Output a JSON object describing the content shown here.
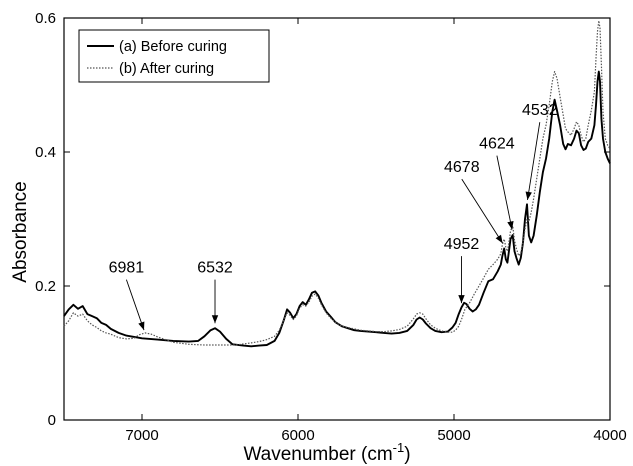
{
  "chart_data": {
    "type": "line",
    "title": "",
    "xlabel": "Wavenumber (cm",
    "xlabel_sup": "-1",
    "xlabel_close": ")",
    "ylabel": "Absorbance",
    "xlim": [
      7500,
      4000
    ],
    "x_reversed": true,
    "ylim": [
      0,
      0.6
    ],
    "grid": false,
    "legend_position": "top-left",
    "x_ticks": [
      7000,
      6000,
      5000,
      4000
    ],
    "y_ticks": [
      0,
      0.2,
      0.4,
      0.6
    ],
    "x_tick_labels": [
      "7000",
      "6000",
      "5000",
      "4000"
    ],
    "y_tick_labels": [
      "0",
      "0.2",
      "0.4",
      "0.6"
    ],
    "series": [
      {
        "name": "(a) Before curing",
        "style": "solid",
        "color": "#000000",
        "points": [
          [
            7500,
            0.155
          ],
          [
            7470,
            0.165
          ],
          [
            7440,
            0.172
          ],
          [
            7410,
            0.166
          ],
          [
            7380,
            0.17
          ],
          [
            7350,
            0.158
          ],
          [
            7320,
            0.155
          ],
          [
            7290,
            0.152
          ],
          [
            7260,
            0.145
          ],
          [
            7230,
            0.142
          ],
          [
            7200,
            0.136
          ],
          [
            7150,
            0.13
          ],
          [
            7100,
            0.126
          ],
          [
            7050,
            0.124
          ],
          [
            7000,
            0.122
          ],
          [
            6900,
            0.12
          ],
          [
            6800,
            0.118
          ],
          [
            6700,
            0.117
          ],
          [
            6640,
            0.118
          ],
          [
            6600,
            0.125
          ],
          [
            6560,
            0.134
          ],
          [
            6532,
            0.137
          ],
          [
            6500,
            0.132
          ],
          [
            6460,
            0.121
          ],
          [
            6420,
            0.113
          ],
          [
            6350,
            0.111
          ],
          [
            6300,
            0.11
          ],
          [
            6250,
            0.111
          ],
          [
            6200,
            0.112
          ],
          [
            6150,
            0.118
          ],
          [
            6120,
            0.13
          ],
          [
            6090,
            0.15
          ],
          [
            6070,
            0.165
          ],
          [
            6050,
            0.16
          ],
          [
            6030,
            0.152
          ],
          [
            6010,
            0.158
          ],
          [
            5990,
            0.17
          ],
          [
            5970,
            0.176
          ],
          [
            5950,
            0.172
          ],
          [
            5930,
            0.18
          ],
          [
            5910,
            0.19
          ],
          [
            5890,
            0.192
          ],
          [
            5870,
            0.186
          ],
          [
            5850,
            0.175
          ],
          [
            5820,
            0.162
          ],
          [
            5790,
            0.154
          ],
          [
            5760,
            0.146
          ],
          [
            5720,
            0.14
          ],
          [
            5680,
            0.137
          ],
          [
            5640,
            0.134
          ],
          [
            5600,
            0.133
          ],
          [
            5550,
            0.132
          ],
          [
            5500,
            0.131
          ],
          [
            5450,
            0.13
          ],
          [
            5400,
            0.129
          ],
          [
            5350,
            0.13
          ],
          [
            5300,
            0.133
          ],
          [
            5260,
            0.142
          ],
          [
            5240,
            0.15
          ],
          [
            5220,
            0.153
          ],
          [
            5200,
            0.15
          ],
          [
            5180,
            0.144
          ],
          [
            5150,
            0.137
          ],
          [
            5120,
            0.133
          ],
          [
            5080,
            0.131
          ],
          [
            5040,
            0.132
          ],
          [
            5010,
            0.138
          ],
          [
            4990,
            0.145
          ],
          [
            4970,
            0.158
          ],
          [
            4952,
            0.168
          ],
          [
            4935,
            0.175
          ],
          [
            4920,
            0.173
          ],
          [
            4900,
            0.166
          ],
          [
            4880,
            0.162
          ],
          [
            4860,
            0.165
          ],
          [
            4840,
            0.172
          ],
          [
            4810,
            0.19
          ],
          [
            4780,
            0.207
          ],
          [
            4750,
            0.21
          ],
          [
            4720,
            0.222
          ],
          [
            4700,
            0.232
          ],
          [
            4690,
            0.245
          ],
          [
            4678,
            0.256
          ],
          [
            4668,
            0.24
          ],
          [
            4658,
            0.235
          ],
          [
            4650,
            0.248
          ],
          [
            4638,
            0.27
          ],
          [
            4624,
            0.276
          ],
          [
            4612,
            0.252
          ],
          [
            4600,
            0.242
          ],
          [
            4585,
            0.232
          ],
          [
            4572,
            0.242
          ],
          [
            4558,
            0.265
          ],
          [
            4545,
            0.3
          ],
          [
            4532,
            0.322
          ],
          [
            4520,
            0.275
          ],
          [
            4505,
            0.265
          ],
          [
            4490,
            0.275
          ],
          [
            4470,
            0.305
          ],
          [
            4450,
            0.34
          ],
          [
            4430,
            0.37
          ],
          [
            4410,
            0.39
          ],
          [
            4390,
            0.42
          ],
          [
            4370,
            0.46
          ],
          [
            4355,
            0.478
          ],
          [
            4340,
            0.462
          ],
          [
            4320,
            0.44
          ],
          [
            4300,
            0.412
          ],
          [
            4285,
            0.404
          ],
          [
            4270,
            0.412
          ],
          [
            4250,
            0.41
          ],
          [
            4230,
            0.42
          ],
          [
            4215,
            0.432
          ],
          [
            4200,
            0.428
          ],
          [
            4185,
            0.41
          ],
          [
            4170,
            0.403
          ],
          [
            4155,
            0.405
          ],
          [
            4140,
            0.415
          ],
          [
            4120,
            0.42
          ],
          [
            4100,
            0.44
          ],
          [
            4090,
            0.47
          ],
          [
            4080,
            0.505
          ],
          [
            4072,
            0.52
          ],
          [
            4064,
            0.505
          ],
          [
            4055,
            0.45
          ],
          [
            4045,
            0.42
          ],
          [
            4030,
            0.4
          ],
          [
            4015,
            0.39
          ],
          [
            4000,
            0.383
          ]
        ]
      },
      {
        "name": "(b) After curing",
        "style": "dotted",
        "color": "#555555",
        "points": [
          [
            7500,
            0.14
          ],
          [
            7470,
            0.148
          ],
          [
            7440,
            0.16
          ],
          [
            7410,
            0.155
          ],
          [
            7380,
            0.158
          ],
          [
            7350,
            0.148
          ],
          [
            7320,
            0.142
          ],
          [
            7290,
            0.138
          ],
          [
            7260,
            0.133
          ],
          [
            7230,
            0.13
          ],
          [
            7200,
            0.128
          ],
          [
            7150,
            0.123
          ],
          [
            7100,
            0.121
          ],
          [
            7050,
            0.122
          ],
          [
            7020,
            0.127
          ],
          [
            6981,
            0.13
          ],
          [
            6940,
            0.128
          ],
          [
            6900,
            0.124
          ],
          [
            6850,
            0.12
          ],
          [
            6800,
            0.116
          ],
          [
            6700,
            0.113
          ],
          [
            6600,
            0.112
          ],
          [
            6532,
            0.112
          ],
          [
            6500,
            0.112
          ],
          [
            6400,
            0.112
          ],
          [
            6300,
            0.115
          ],
          [
            6250,
            0.117
          ],
          [
            6200,
            0.12
          ],
          [
            6150,
            0.125
          ],
          [
            6120,
            0.134
          ],
          [
            6090,
            0.15
          ],
          [
            6070,
            0.16
          ],
          [
            6050,
            0.156
          ],
          [
            6030,
            0.15
          ],
          [
            6010,
            0.155
          ],
          [
            5990,
            0.167
          ],
          [
            5970,
            0.172
          ],
          [
            5950,
            0.17
          ],
          [
            5930,
            0.176
          ],
          [
            5910,
            0.185
          ],
          [
            5890,
            0.188
          ],
          [
            5870,
            0.182
          ],
          [
            5850,
            0.172
          ],
          [
            5820,
            0.16
          ],
          [
            5790,
            0.152
          ],
          [
            5760,
            0.146
          ],
          [
            5720,
            0.14
          ],
          [
            5680,
            0.138
          ],
          [
            5640,
            0.136
          ],
          [
            5600,
            0.134
          ],
          [
            5550,
            0.133
          ],
          [
            5500,
            0.132
          ],
          [
            5450,
            0.132
          ],
          [
            5400,
            0.133
          ],
          [
            5350,
            0.135
          ],
          [
            5300,
            0.14
          ],
          [
            5260,
            0.151
          ],
          [
            5240,
            0.158
          ],
          [
            5220,
            0.16
          ],
          [
            5200,
            0.158
          ],
          [
            5180,
            0.151
          ],
          [
            5150,
            0.142
          ],
          [
            5120,
            0.137
          ],
          [
            5080,
            0.133
          ],
          [
            5040,
            0.131
          ],
          [
            5010,
            0.131
          ],
          [
            4990,
            0.134
          ],
          [
            4970,
            0.14
          ],
          [
            4952,
            0.15
          ],
          [
            4930,
            0.165
          ],
          [
            4900,
            0.175
          ],
          [
            4870,
            0.188
          ],
          [
            4840,
            0.2
          ],
          [
            4810,
            0.212
          ],
          [
            4780,
            0.225
          ],
          [
            4750,
            0.232
          ],
          [
            4720,
            0.24
          ],
          [
            4700,
            0.248
          ],
          [
            4690,
            0.262
          ],
          [
            4678,
            0.27
          ],
          [
            4668,
            0.258
          ],
          [
            4658,
            0.252
          ],
          [
            4650,
            0.262
          ],
          [
            4638,
            0.282
          ],
          [
            4624,
            0.29
          ],
          [
            4612,
            0.268
          ],
          [
            4600,
            0.256
          ],
          [
            4585,
            0.245
          ],
          [
            4572,
            0.25
          ],
          [
            4558,
            0.265
          ],
          [
            4545,
            0.285
          ],
          [
            4532,
            0.3
          ],
          [
            4520,
            0.296
          ],
          [
            4505,
            0.31
          ],
          [
            4490,
            0.33
          ],
          [
            4470,
            0.36
          ],
          [
            4450,
            0.39
          ],
          [
            4430,
            0.42
          ],
          [
            4410,
            0.44
          ],
          [
            4390,
            0.47
          ],
          [
            4370,
            0.505
          ],
          [
            4355,
            0.52
          ],
          [
            4340,
            0.51
          ],
          [
            4320,
            0.482
          ],
          [
            4300,
            0.455
          ],
          [
            4285,
            0.435
          ],
          [
            4270,
            0.43
          ],
          [
            4250,
            0.425
          ],
          [
            4230,
            0.435
          ],
          [
            4215,
            0.445
          ],
          [
            4200,
            0.44
          ],
          [
            4185,
            0.425
          ],
          [
            4170,
            0.415
          ],
          [
            4155,
            0.42
          ],
          [
            4140,
            0.44
          ],
          [
            4120,
            0.462
          ],
          [
            4100,
            0.49
          ],
          [
            4090,
            0.54
          ],
          [
            4080,
            0.58
          ],
          [
            4072,
            0.596
          ],
          [
            4064,
            0.585
          ],
          [
            4055,
            0.53
          ],
          [
            4045,
            0.46
          ],
          [
            4030,
            0.42
          ],
          [
            4015,
            0.41
          ],
          [
            4000,
            0.405
          ]
        ]
      }
    ],
    "annotations": [
      {
        "text": "6981",
        "x": 6981,
        "y": 0.13,
        "label_x": 7100,
        "label_y": 0.22
      },
      {
        "text": "6532",
        "x": 6532,
        "y": 0.14,
        "label_x": 6532,
        "label_y": 0.22
      },
      {
        "text": "4952",
        "x": 4952,
        "y": 0.17,
        "label_x": 4952,
        "label_y": 0.255
      },
      {
        "text": "4678",
        "x": 4678,
        "y": 0.26,
        "label_x": 4950,
        "label_y": 0.37
      },
      {
        "text": "4624",
        "x": 4624,
        "y": 0.28,
        "label_x": 4725,
        "label_y": 0.405
      },
      {
        "text": "4532",
        "x": 4532,
        "y": 0.324,
        "label_x": 4450,
        "label_y": 0.455
      }
    ]
  }
}
